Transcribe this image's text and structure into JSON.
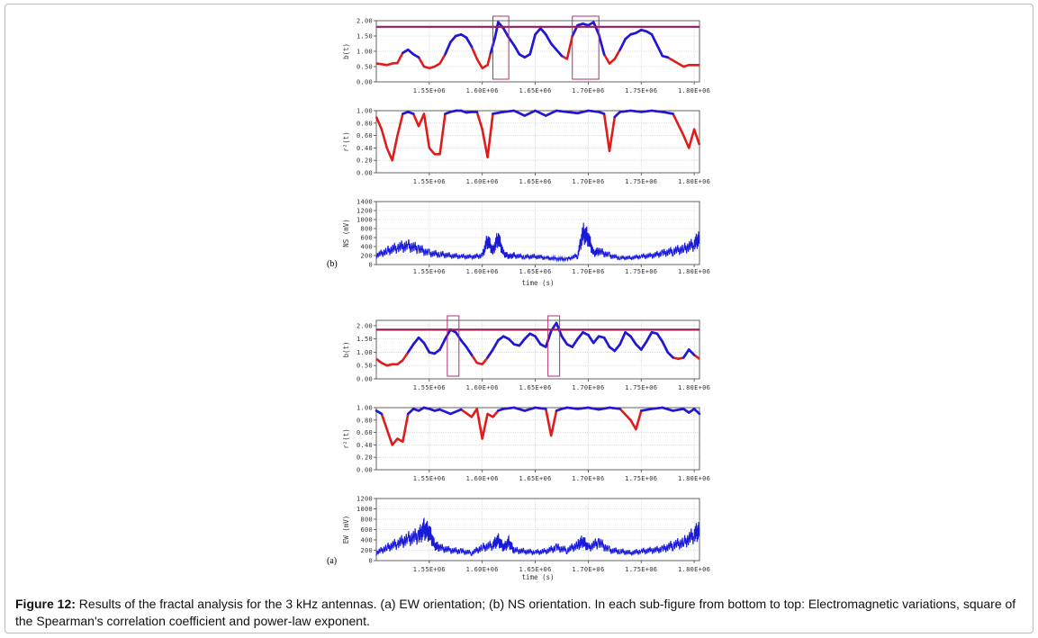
{
  "caption": {
    "label": "Figure 12:",
    "text": " Results of the fractal analysis for the 3 kHz antennas. (a) EW orientation; (b) NS orientation. In each sub-figure from bottom to top: Electromagnetic variations, square of the Spearman's correlation coefficient and power-law exponent."
  },
  "colors": {
    "series_main": "#1a1adb",
    "series_flagged": "#e01b1b",
    "threshold": "#9b1a5a",
    "highlight_box": "#b03070",
    "grid": "#d6d6d6"
  },
  "chart_data": [
    {
      "panel_label": "(b)",
      "type": "line",
      "x_tick_labels": [
        "1.55E+06",
        "1.60E+06",
        "1.65E+06",
        "1.70E+06",
        "1.75E+06",
        "1.80E+06"
      ],
      "xlim": [
        1500000,
        1805000
      ],
      "xlabel": "time (s)",
      "subplots": [
        {
          "role": "power-law exponent",
          "ylabel": "b(t)",
          "y_tick_labels": [
            "0.00",
            "0.50",
            "1.00",
            "1.50",
            "2.00"
          ],
          "ylim": [
            0,
            2.0
          ],
          "threshold": 1.8,
          "highlight_intervals": [
            [
              1610000,
              1625000
            ],
            [
              1685000,
              1710000
            ]
          ],
          "series": [
            {
              "x": [
                1500000,
                1505000,
                1510000,
                1515000,
                1520000,
                1525000,
                1530000,
                1535000,
                1540000,
                1545000,
                1550000,
                1555000,
                1560000,
                1565000,
                1570000,
                1575000,
                1580000,
                1585000,
                1590000,
                1595000,
                1600000,
                1605000,
                1608000,
                1612000,
                1615000,
                1620000,
                1625000,
                1630000,
                1635000,
                1640000,
                1645000,
                1650000,
                1655000,
                1660000,
                1665000,
                1670000,
                1675000,
                1680000,
                1685000,
                1690000,
                1695000,
                1700000,
                1705000,
                1710000,
                1715000,
                1720000,
                1725000,
                1730000,
                1735000,
                1740000,
                1745000,
                1750000,
                1755000,
                1760000,
                1765000,
                1770000,
                1775000,
                1780000,
                1785000,
                1790000,
                1795000,
                1800000,
                1805000
              ],
              "y": [
                0.6,
                0.58,
                0.55,
                0.6,
                0.62,
                0.95,
                1.05,
                0.9,
                0.8,
                0.5,
                0.45,
                0.5,
                0.6,
                0.9,
                1.3,
                1.5,
                1.55,
                1.45,
                1.15,
                0.75,
                0.45,
                0.55,
                0.95,
                1.45,
                1.95,
                1.75,
                1.45,
                1.2,
                0.9,
                0.8,
                0.9,
                1.55,
                1.75,
                1.55,
                1.25,
                1.05,
                0.85,
                0.75,
                1.5,
                1.85,
                1.9,
                1.85,
                1.95,
                1.55,
                0.9,
                0.6,
                0.75,
                1.05,
                1.4,
                1.55,
                1.6,
                1.7,
                1.65,
                1.55,
                1.2,
                0.85,
                0.8,
                0.7,
                0.6,
                0.5,
                0.55,
                0.55,
                0.55
              ]
            }
          ]
        },
        {
          "role": "square of the Spearman's correlation coefficient",
          "ylabel": "r²(t)",
          "y_tick_labels": [
            "0.00",
            "0.20",
            "0.40",
            "0.60",
            "0.80",
            "1.00"
          ],
          "ylim": [
            0,
            1.0
          ],
          "series": [
            {
              "x": [
                1500000,
                1505000,
                1510000,
                1515000,
                1520000,
                1525000,
                1530000,
                1535000,
                1540000,
                1545000,
                1550000,
                1555000,
                1560000,
                1565000,
                1570000,
                1575000,
                1580000,
                1585000,
                1590000,
                1595000,
                1600000,
                1605000,
                1610000,
                1620000,
                1630000,
                1640000,
                1650000,
                1660000,
                1670000,
                1680000,
                1690000,
                1700000,
                1710000,
                1715000,
                1720000,
                1725000,
                1730000,
                1740000,
                1750000,
                1760000,
                1770000,
                1780000,
                1790000,
                1795000,
                1800000,
                1805000
              ],
              "y": [
                0.9,
                0.7,
                0.4,
                0.2,
                0.6,
                0.95,
                0.98,
                0.95,
                0.75,
                0.95,
                0.4,
                0.3,
                0.3,
                0.95,
                0.98,
                1.0,
                1.0,
                0.97,
                0.98,
                0.98,
                0.7,
                0.25,
                0.95,
                0.98,
                1.0,
                0.92,
                1.0,
                0.92,
                1.0,
                0.98,
                0.96,
                1.0,
                0.98,
                0.95,
                0.35,
                0.9,
                0.98,
                1.0,
                0.98,
                1.0,
                0.98,
                0.95,
                0.6,
                0.4,
                0.7,
                0.45
              ]
            }
          ]
        },
        {
          "role": "electromagnetic variations",
          "ylabel": "NS (mV)",
          "y_tick_labels": [
            "0",
            "200",
            "400",
            "600",
            "800",
            "1000",
            "1200",
            "1400"
          ],
          "ylim": [
            0,
            1400
          ],
          "series": [
            {
              "x": [
                1500000,
                1510000,
                1520000,
                1530000,
                1540000,
                1550000,
                1560000,
                1570000,
                1580000,
                1590000,
                1600000,
                1605000,
                1610000,
                1615000,
                1620000,
                1625000,
                1630000,
                1640000,
                1650000,
                1660000,
                1670000,
                1680000,
                1690000,
                1695000,
                1700000,
                1705000,
                1710000,
                1720000,
                1730000,
                1740000,
                1750000,
                1760000,
                1770000,
                1780000,
                1790000,
                1800000,
                1805000
              ],
              "y": [
                200,
                300,
                380,
                420,
                350,
                250,
                230,
                200,
                180,
                170,
                200,
                550,
                300,
                600,
                250,
                180,
                200,
                170,
                180,
                150,
                130,
                120,
                200,
                700,
                600,
                250,
                300,
                200,
                150,
                150,
                180,
                200,
                250,
                300,
                350,
                450,
                600
              ]
            }
          ]
        }
      ]
    },
    {
      "panel_label": "(a)",
      "type": "line",
      "x_tick_labels": [
        "1.55E+06",
        "1.60E+06",
        "1.65E+06",
        "1.70E+06",
        "1.75E+06",
        "1.80E+06"
      ],
      "xlim": [
        1500000,
        1805000
      ],
      "xlabel": "time (s)",
      "subplots": [
        {
          "role": "power-law exponent",
          "ylabel": "b(t)",
          "y_tick_labels": [
            "0.00",
            "0.50",
            "1.00",
            "1.50",
            "2.00"
          ],
          "ylim": [
            0,
            2.2
          ],
          "threshold": 1.85,
          "highlight_intervals": [
            [
              1567000,
              1578000
            ],
            [
              1662000,
              1673000
            ]
          ],
          "series": [
            {
              "x": [
                1500000,
                1505000,
                1510000,
                1515000,
                1520000,
                1525000,
                1530000,
                1535000,
                1540000,
                1545000,
                1550000,
                1555000,
                1560000,
                1565000,
                1570000,
                1575000,
                1580000,
                1585000,
                1590000,
                1595000,
                1600000,
                1605000,
                1610000,
                1615000,
                1620000,
                1625000,
                1630000,
                1635000,
                1640000,
                1645000,
                1650000,
                1655000,
                1660000,
                1665000,
                1670000,
                1675000,
                1680000,
                1685000,
                1690000,
                1695000,
                1700000,
                1705000,
                1710000,
                1715000,
                1720000,
                1725000,
                1730000,
                1735000,
                1740000,
                1745000,
                1750000,
                1755000,
                1760000,
                1765000,
                1770000,
                1775000,
                1780000,
                1785000,
                1790000,
                1795000,
                1800000,
                1805000
              ],
              "y": [
                0.75,
                0.6,
                0.5,
                0.55,
                0.55,
                0.7,
                1.0,
                1.3,
                1.55,
                1.35,
                1.0,
                0.95,
                1.1,
                1.5,
                1.85,
                1.75,
                1.45,
                1.2,
                0.9,
                0.6,
                0.55,
                0.8,
                1.1,
                1.45,
                1.6,
                1.5,
                1.3,
                1.25,
                1.5,
                1.7,
                1.6,
                1.3,
                1.2,
                1.8,
                2.1,
                1.6,
                1.3,
                1.2,
                1.5,
                1.75,
                1.65,
                1.35,
                1.6,
                1.55,
                1.2,
                1.05,
                1.3,
                1.75,
                1.6,
                1.3,
                1.1,
                1.4,
                1.75,
                1.7,
                1.4,
                1.0,
                0.8,
                0.75,
                0.8,
                1.1,
                0.9,
                0.75
              ]
            }
          ]
        },
        {
          "role": "square of the Spearman's correlation coefficient",
          "ylabel": "r²(t)",
          "y_tick_labels": [
            "0.00",
            "0.20",
            "0.40",
            "0.60",
            "0.80",
            "1.00"
          ],
          "ylim": [
            0,
            1.0
          ],
          "series": [
            {
              "x": [
                1500000,
                1505000,
                1510000,
                1515000,
                1520000,
                1525000,
                1530000,
                1535000,
                1540000,
                1545000,
                1550000,
                1555000,
                1560000,
                1570000,
                1580000,
                1590000,
                1595000,
                1600000,
                1605000,
                1610000,
                1615000,
                1620000,
                1630000,
                1640000,
                1650000,
                1660000,
                1665000,
                1670000,
                1675000,
                1680000,
                1690000,
                1700000,
                1710000,
                1720000,
                1730000,
                1740000,
                1745000,
                1750000,
                1760000,
                1770000,
                1780000,
                1790000,
                1795000,
                1800000,
                1805000
              ],
              "y": [
                0.95,
                0.9,
                0.65,
                0.4,
                0.5,
                0.45,
                0.9,
                0.98,
                0.95,
                1.0,
                0.98,
                0.95,
                0.97,
                0.9,
                0.97,
                0.85,
                0.98,
                0.5,
                0.9,
                0.85,
                0.95,
                0.98,
                1.0,
                0.95,
                1.0,
                0.98,
                0.55,
                0.95,
                0.98,
                1.0,
                0.98,
                1.0,
                0.97,
                1.0,
                0.98,
                0.8,
                0.65,
                0.95,
                0.98,
                1.0,
                0.95,
                0.98,
                0.92,
                0.98,
                0.9
              ]
            }
          ]
        },
        {
          "role": "electromagnetic variations",
          "ylabel": "EW (mV)",
          "y_tick_labels": [
            "0",
            "200",
            "400",
            "600",
            "800",
            "1000",
            "1200"
          ],
          "ylim": [
            0,
            1200
          ],
          "series": [
            {
              "x": [
                1500000,
                1510000,
                1520000,
                1530000,
                1540000,
                1545000,
                1550000,
                1555000,
                1560000,
                1570000,
                1580000,
                1590000,
                1600000,
                1610000,
                1615000,
                1620000,
                1625000,
                1630000,
                1640000,
                1650000,
                1660000,
                1670000,
                1680000,
                1690000,
                1695000,
                1700000,
                1710000,
                1720000,
                1730000,
                1740000,
                1750000,
                1760000,
                1770000,
                1780000,
                1790000,
                1800000,
                1805000
              ],
              "y": [
                150,
                250,
                330,
                420,
                480,
                600,
                550,
                300,
                250,
                200,
                180,
                150,
                250,
                300,
                400,
                250,
                350,
                200,
                180,
                160,
                180,
                250,
                200,
                300,
                380,
                250,
                350,
                200,
                180,
                150,
                180,
                200,
                220,
                300,
                350,
                500,
                600
              ]
            }
          ]
        }
      ]
    }
  ]
}
